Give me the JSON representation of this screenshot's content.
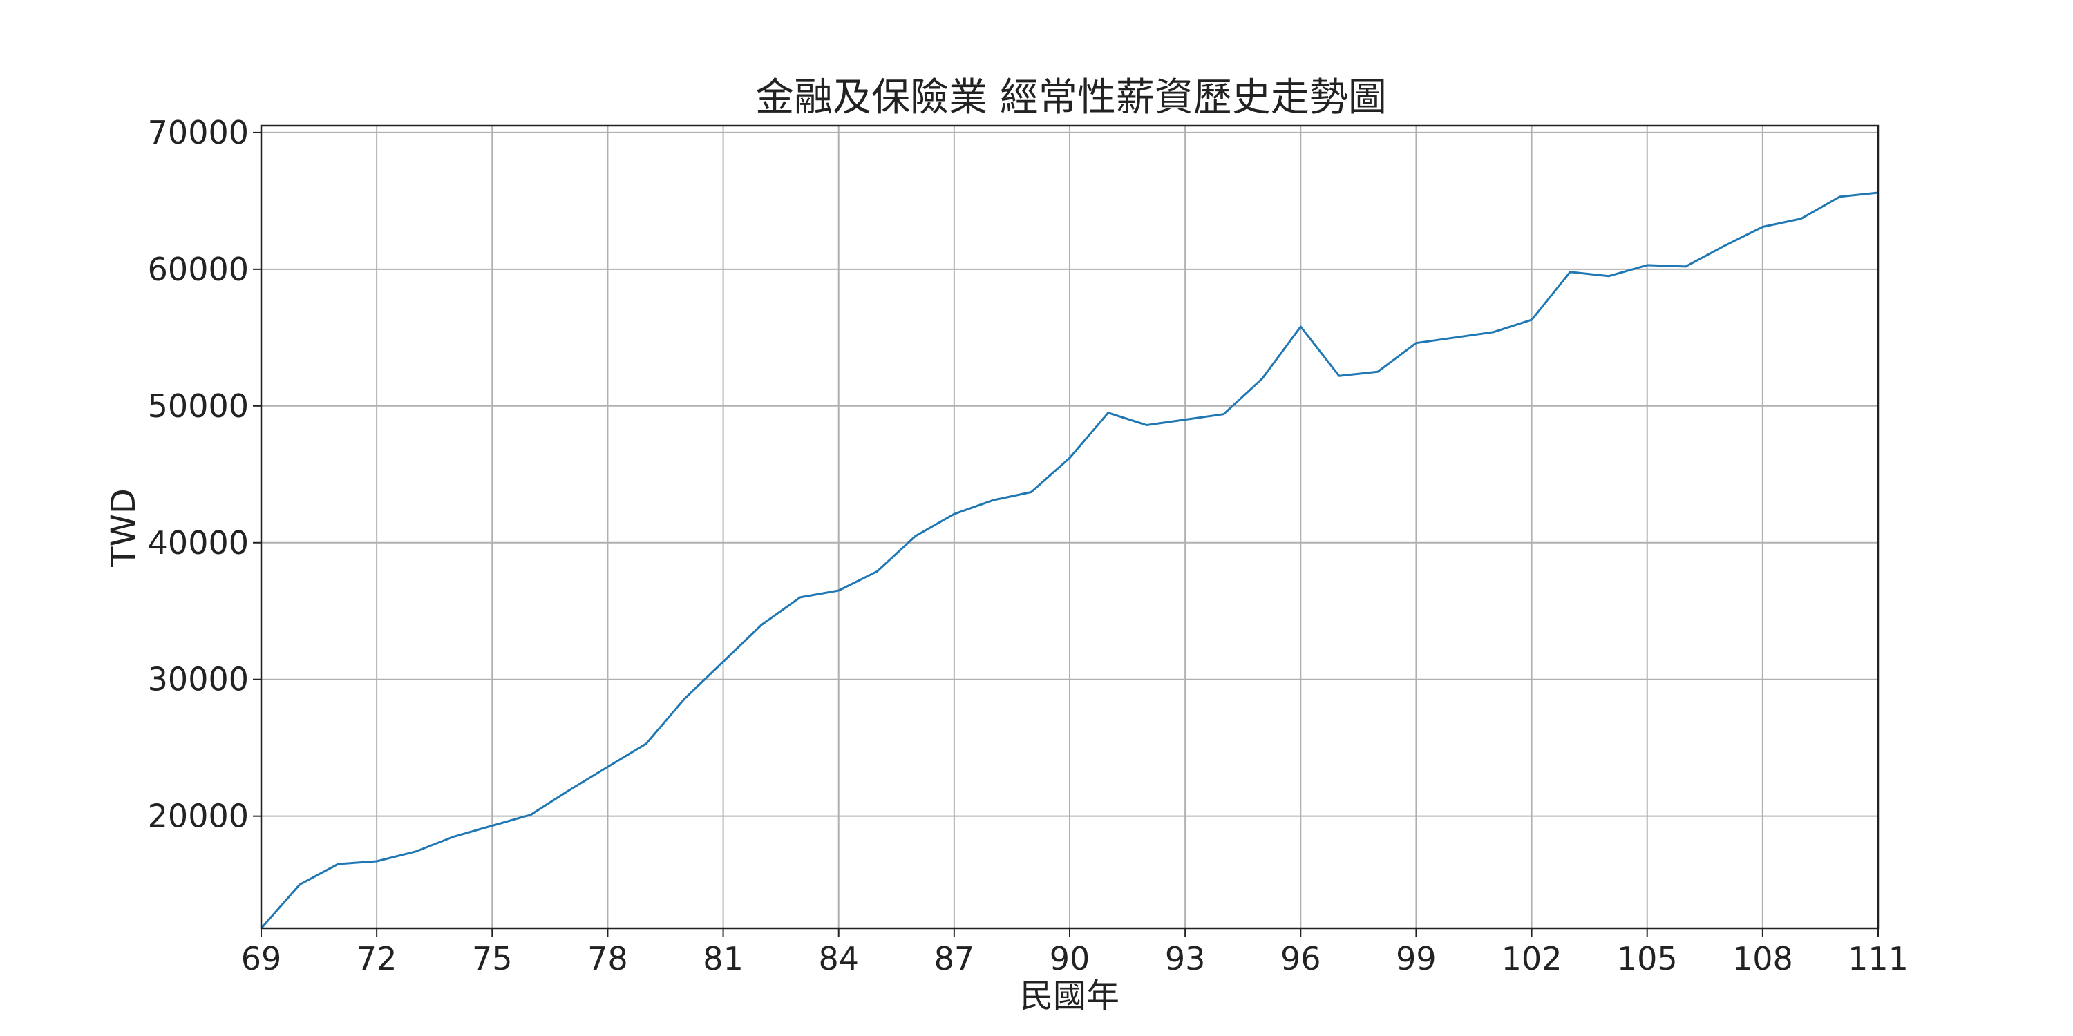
{
  "chart_data": {
    "type": "line",
    "title": "金融及保險業  經常性薪資歷史走勢圖",
    "xlabel": "民國年",
    "ylabel": "TWD",
    "xlim": [
      69,
      111
    ],
    "ylim": [
      11800,
      70500
    ],
    "x_ticks": [
      69,
      72,
      75,
      78,
      81,
      84,
      87,
      90,
      93,
      96,
      99,
      102,
      105,
      108,
      111
    ],
    "y_ticks": [
      20000,
      30000,
      40000,
      50000,
      60000,
      70000
    ],
    "grid": true,
    "line_color": "#1f77b4",
    "series": [
      {
        "x": [
          69,
          70,
          71,
          72,
          73,
          74,
          75,
          76,
          77,
          78,
          79,
          80,
          81,
          82,
          83,
          84,
          85,
          86,
          87,
          88,
          89,
          90,
          91,
          92,
          93,
          94,
          95,
          96,
          97,
          98,
          99,
          100,
          101,
          102,
          103,
          104,
          105,
          106,
          107,
          108,
          109,
          110,
          111
        ],
        "values": [
          11800,
          15000,
          16500,
          16700,
          17400,
          18500,
          19300,
          20100,
          21900,
          23600,
          25300,
          28600,
          31300,
          34000,
          36000,
          36500,
          37900,
          40500,
          42100,
          43100,
          43700,
          46200,
          49500,
          48600,
          49000,
          49400,
          52000,
          55800,
          52200,
          52500,
          54600,
          55000,
          55400,
          56300,
          59800,
          59500,
          60300,
          60200,
          61700,
          63100,
          63700,
          65300,
          65600
        ]
      }
    ]
  }
}
